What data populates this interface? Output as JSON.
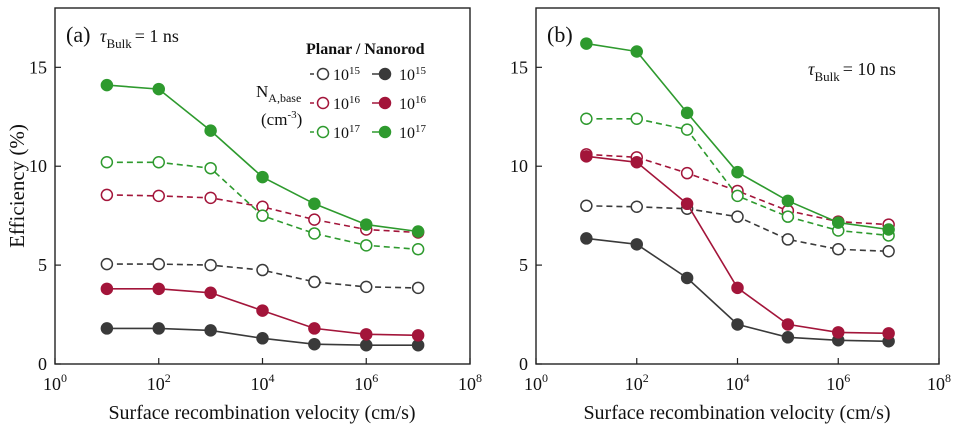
{
  "y_axis_label": "Efficiency (%)",
  "legend": {
    "header": "Planar / Nanorod",
    "param_label_main": "N",
    "param_label_sub": "A,base",
    "param_unit": "(cm",
    "param_unit_exp": "-3",
    "param_unit_close": ")",
    "entries": [
      {
        "base": "10",
        "exp": "15",
        "color": "#3a3a3a"
      },
      {
        "base": "10",
        "exp": "16",
        "color": "#a3153a"
      },
      {
        "base": "10",
        "exp": "17",
        "color": "#2e9a2e"
      }
    ]
  },
  "chart_data": [
    {
      "type": "line",
      "panel_label": "(a)",
      "annotation": {
        "tau": "τ",
        "sub": "Bulk",
        "rest": "= 1 ns"
      },
      "xlabel": "Surface recombination velocity (cm/s)",
      "x_scale": "log",
      "xlim": [
        1,
        100000000
      ],
      "ylim": [
        0,
        18
      ],
      "x_ticks": [
        {
          "base": "10",
          "exp": "0"
        },
        {
          "base": "10",
          "exp": "2"
        },
        {
          "base": "10",
          "exp": "4"
        },
        {
          "base": "10",
          "exp": "6"
        },
        {
          "base": "10",
          "exp": "8"
        }
      ],
      "y_ticks": [
        "0",
        "5",
        "10",
        "15"
      ],
      "x": [
        10,
        100,
        1000,
        10000,
        100000,
        1000000,
        10000000
      ],
      "series": [
        {
          "name": "Planar 10^15",
          "style": "open-dashed",
          "color": "#3a3a3a",
          "values": [
            5.05,
            5.05,
            5.0,
            4.75,
            4.15,
            3.9,
            3.85
          ]
        },
        {
          "name": "Planar 10^16",
          "style": "open-dashed",
          "color": "#a3153a",
          "values": [
            8.55,
            8.5,
            8.4,
            7.95,
            7.3,
            6.8,
            6.65
          ]
        },
        {
          "name": "Planar 10^17",
          "style": "open-dashed",
          "color": "#2e9a2e",
          "values": [
            10.2,
            10.2,
            9.9,
            7.5,
            6.6,
            6.0,
            5.8
          ]
        },
        {
          "name": "Nanorod 10^15",
          "style": "filled-solid",
          "color": "#3a3a3a",
          "values": [
            1.8,
            1.8,
            1.7,
            1.3,
            1.0,
            0.95,
            0.95
          ]
        },
        {
          "name": "Nanorod 10^16",
          "style": "filled-solid",
          "color": "#a3153a",
          "values": [
            3.8,
            3.8,
            3.6,
            2.7,
            1.8,
            1.5,
            1.45
          ]
        },
        {
          "name": "Nanorod 10^17",
          "style": "filled-solid",
          "color": "#2e9a2e",
          "values": [
            14.1,
            13.9,
            11.8,
            9.45,
            8.1,
            7.05,
            6.7
          ]
        }
      ]
    },
    {
      "type": "line",
      "panel_label": "(b)",
      "annotation": {
        "tau": "τ",
        "sub": "Bulk",
        "rest": "= 10 ns"
      },
      "xlabel": "Surface recombination velocity (cm/s)",
      "x_scale": "log",
      "xlim": [
        1,
        100000000
      ],
      "ylim": [
        0,
        18
      ],
      "x_ticks": [
        {
          "base": "10",
          "exp": "0"
        },
        {
          "base": "10",
          "exp": "2"
        },
        {
          "base": "10",
          "exp": "4"
        },
        {
          "base": "10",
          "exp": "6"
        },
        {
          "base": "10",
          "exp": "8"
        }
      ],
      "y_ticks": [
        "0",
        "5",
        "10",
        "15"
      ],
      "x": [
        10,
        100,
        1000,
        10000,
        100000,
        1000000,
        10000000
      ],
      "series": [
        {
          "name": "Planar 10^15",
          "style": "open-dashed",
          "color": "#3a3a3a",
          "values": [
            8.0,
            7.95,
            7.85,
            7.45,
            6.3,
            5.8,
            5.7
          ]
        },
        {
          "name": "Planar 10^16",
          "style": "open-dashed",
          "color": "#a3153a",
          "values": [
            10.6,
            10.45,
            9.65,
            8.75,
            7.75,
            7.2,
            7.05
          ]
        },
        {
          "name": "Planar 10^17",
          "style": "open-dashed",
          "color": "#2e9a2e",
          "values": [
            12.4,
            12.4,
            11.85,
            8.5,
            7.45,
            6.75,
            6.5
          ]
        },
        {
          "name": "Nanorod 10^15",
          "style": "filled-solid",
          "color": "#3a3a3a",
          "values": [
            6.35,
            6.05,
            4.35,
            2.0,
            1.35,
            1.2,
            1.15
          ]
        },
        {
          "name": "Nanorod 10^16",
          "style": "filled-solid",
          "color": "#a3153a",
          "values": [
            10.5,
            10.2,
            8.1,
            3.85,
            2.0,
            1.6,
            1.55
          ]
        },
        {
          "name": "Nanorod 10^17",
          "style": "filled-solid",
          "color": "#2e9a2e",
          "values": [
            16.2,
            15.8,
            12.7,
            9.7,
            8.25,
            7.15,
            6.8
          ]
        }
      ]
    }
  ]
}
